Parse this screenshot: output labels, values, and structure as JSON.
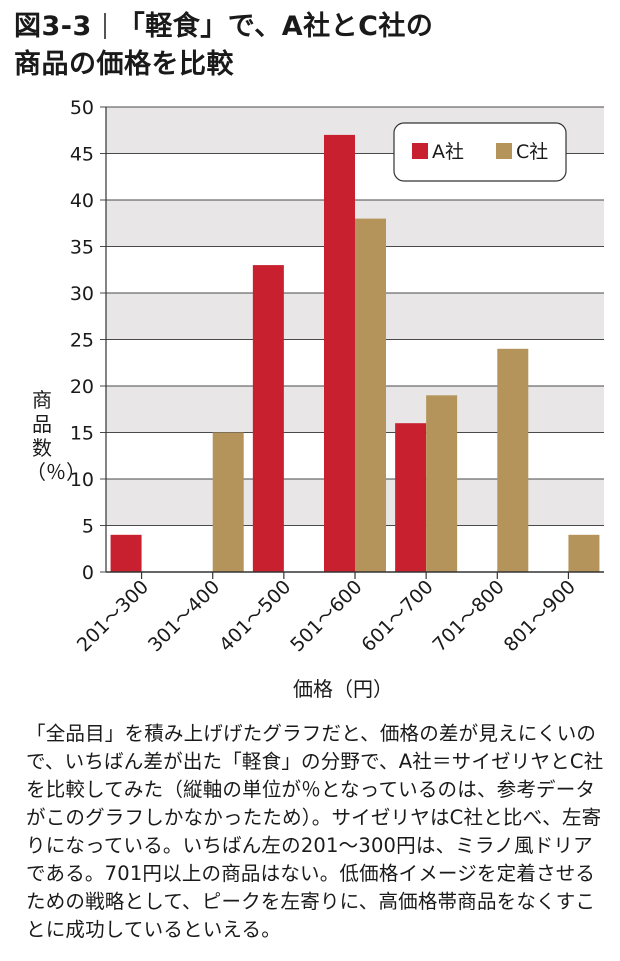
{
  "title": {
    "figure_label": "図3-3",
    "line1": "「軽食」で、A社とC社の",
    "line2": "商品の価格を比較"
  },
  "chart_data": {
    "type": "bar",
    "categories": [
      "201～300",
      "301～400",
      "401～500",
      "501～600",
      "601～700",
      "701～800",
      "801～900"
    ],
    "series": [
      {
        "name": "A社",
        "values": [
          4,
          0,
          33,
          47,
          16,
          0,
          0
        ],
        "color": "#c8202f"
      },
      {
        "name": "C社",
        "values": [
          0,
          15,
          0,
          38,
          19,
          24,
          4
        ],
        "color": "#b5945b"
      }
    ],
    "xlabel": "価格（円）",
    "ylabel": "商品数（％）",
    "ylim": [
      0,
      50
    ],
    "yticks": [
      0,
      5,
      10,
      15,
      20,
      25,
      30,
      35,
      40,
      45,
      50
    ],
    "grid": true,
    "legend_position": "top-right",
    "band_color": "#e8e6e7"
  },
  "caption": "「全品目」を積み上げげたグラフだと、価格の差が見えにくいので、いちばん差が出た「軽食」の分野で、A社＝サイゼリヤとC社を比較してみた（縦軸の単位が％となっているのは、参考データがこのグラフしかなかったため）。サイゼリヤはC社と比べ、左寄りになっている。いちばん左の201～300円は、ミラノ風ドリアである。701円以上の商品はない。低価格イメージを定着させるための戦略として、ピークを左寄りに、高価格帯商品をなくすことに成功しているといえる。"
}
